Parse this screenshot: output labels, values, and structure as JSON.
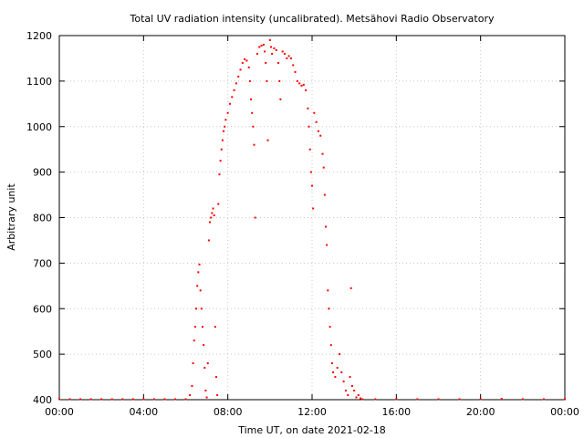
{
  "chart_data": {
    "type": "scatter",
    "title": "Total UV radiation intensity (uncalibrated). Metsähovi Radio Observatory",
    "xlabel": "Time UT, on date 2021-02-18",
    "ylabel": "Arbitrary unit",
    "xlim": [
      0,
      24
    ],
    "ylim": [
      400,
      1200
    ],
    "x_unit": "hours UT",
    "x_ticks": [
      {
        "value": 0,
        "label": "00:00"
      },
      {
        "value": 4,
        "label": "04:00"
      },
      {
        "value": 8,
        "label": "08:00"
      },
      {
        "value": 12,
        "label": "12:00"
      },
      {
        "value": 16,
        "label": "16:00"
      },
      {
        "value": 20,
        "label": "20:00"
      },
      {
        "value": 24,
        "label": "00:00"
      }
    ],
    "y_ticks": [
      {
        "value": 400,
        "label": "400"
      },
      {
        "value": 500,
        "label": "500"
      },
      {
        "value": 600,
        "label": "600"
      },
      {
        "value": 700,
        "label": "700"
      },
      {
        "value": 800,
        "label": "800"
      },
      {
        "value": 900,
        "label": "900"
      },
      {
        "value": 1000,
        "label": "1000"
      },
      {
        "value": 1100,
        "label": "1100"
      },
      {
        "value": 1200,
        "label": "1200"
      }
    ],
    "grid": true,
    "color": "#ff0000",
    "series": [
      {
        "points": [
          [
            0.0,
            401
          ],
          [
            0.5,
            401
          ],
          [
            1.0,
            401
          ],
          [
            1.5,
            401
          ],
          [
            2.0,
            401
          ],
          [
            2.5,
            401
          ],
          [
            3.0,
            401
          ],
          [
            3.5,
            401
          ],
          [
            4.0,
            401
          ],
          [
            4.5,
            401
          ],
          [
            5.0,
            401
          ],
          [
            5.5,
            401
          ],
          [
            6.0,
            401
          ],
          [
            6.2,
            410
          ],
          [
            6.3,
            430
          ],
          [
            6.35,
            480
          ],
          [
            6.4,
            530
          ],
          [
            6.45,
            560
          ],
          [
            6.5,
            600
          ],
          [
            6.55,
            650
          ],
          [
            6.6,
            680
          ],
          [
            6.65,
            697
          ],
          [
            6.7,
            640
          ],
          [
            6.75,
            600
          ],
          [
            6.8,
            560
          ],
          [
            6.85,
            520
          ],
          [
            6.9,
            470
          ],
          [
            6.95,
            420
          ],
          [
            7.0,
            405
          ],
          [
            7.05,
            480
          ],
          [
            7.1,
            750
          ],
          [
            7.15,
            790
          ],
          [
            7.2,
            800
          ],
          [
            7.25,
            810
          ],
          [
            7.3,
            820
          ],
          [
            7.35,
            805
          ],
          [
            7.4,
            560
          ],
          [
            7.45,
            450
          ],
          [
            7.5,
            410
          ],
          [
            7.55,
            830
          ],
          [
            7.6,
            895
          ],
          [
            7.65,
            925
          ],
          [
            7.7,
            950
          ],
          [
            7.75,
            970
          ],
          [
            7.8,
            990
          ],
          [
            7.85,
            1000
          ],
          [
            7.9,
            1015
          ],
          [
            8.0,
            1030
          ],
          [
            8.1,
            1050
          ],
          [
            8.2,
            1065
          ],
          [
            8.3,
            1080
          ],
          [
            8.4,
            1095
          ],
          [
            8.5,
            1110
          ],
          [
            8.6,
            1125
          ],
          [
            8.7,
            1140
          ],
          [
            8.8,
            1148
          ],
          [
            8.9,
            1145
          ],
          [
            9.0,
            1130
          ],
          [
            9.05,
            1100
          ],
          [
            9.1,
            1060
          ],
          [
            9.15,
            1030
          ],
          [
            9.2,
            1000
          ],
          [
            9.25,
            960
          ],
          [
            9.3,
            800
          ],
          [
            9.4,
            1160
          ],
          [
            9.5,
            1175
          ],
          [
            9.6,
            1178
          ],
          [
            9.7,
            1180
          ],
          [
            9.75,
            1165
          ],
          [
            9.8,
            1140
          ],
          [
            9.85,
            1100
          ],
          [
            9.9,
            970
          ],
          [
            10.0,
            1190
          ],
          [
            10.05,
            1175
          ],
          [
            10.1,
            1160
          ],
          [
            10.2,
            1172
          ],
          [
            10.3,
            1168
          ],
          [
            10.4,
            1140
          ],
          [
            10.45,
            1100
          ],
          [
            10.5,
            1060
          ],
          [
            10.6,
            1165
          ],
          [
            10.7,
            1160
          ],
          [
            10.8,
            1150
          ],
          [
            10.9,
            1155
          ],
          [
            11.0,
            1150
          ],
          [
            11.1,
            1135
          ],
          [
            11.2,
            1120
          ],
          [
            11.3,
            1100
          ],
          [
            11.4,
            1095
          ],
          [
            11.5,
            1090
          ],
          [
            11.6,
            1092
          ],
          [
            11.7,
            1080
          ],
          [
            11.8,
            1040
          ],
          [
            11.85,
            1000
          ],
          [
            11.9,
            950
          ],
          [
            11.95,
            900
          ],
          [
            12.0,
            870
          ],
          [
            12.05,
            820
          ],
          [
            12.1,
            1030
          ],
          [
            12.2,
            1010
          ],
          [
            12.3,
            990
          ],
          [
            12.4,
            980
          ],
          [
            12.5,
            940
          ],
          [
            12.55,
            910
          ],
          [
            12.6,
            850
          ],
          [
            12.65,
            780
          ],
          [
            12.7,
            740
          ],
          [
            12.75,
            640
          ],
          [
            12.8,
            600
          ],
          [
            12.85,
            560
          ],
          [
            12.9,
            520
          ],
          [
            12.95,
            480
          ],
          [
            13.0,
            460
          ],
          [
            13.1,
            450
          ],
          [
            13.2,
            470
          ],
          [
            13.3,
            500
          ],
          [
            13.4,
            460
          ],
          [
            13.5,
            440
          ],
          [
            13.6,
            420
          ],
          [
            13.7,
            410
          ],
          [
            13.8,
            450
          ],
          [
            13.85,
            645
          ],
          [
            13.9,
            430
          ],
          [
            14.0,
            420
          ],
          [
            14.1,
            405
          ],
          [
            14.2,
            410
          ],
          [
            14.3,
            403
          ],
          [
            14.4,
            401
          ],
          [
            15.0,
            401
          ],
          [
            16.0,
            401
          ],
          [
            17.0,
            401
          ],
          [
            18.0,
            401
          ],
          [
            19.0,
            401
          ],
          [
            20.0,
            401
          ],
          [
            21.0,
            402
          ],
          [
            22.0,
            401
          ],
          [
            23.0,
            401
          ],
          [
            24.0,
            401
          ]
        ]
      }
    ]
  }
}
